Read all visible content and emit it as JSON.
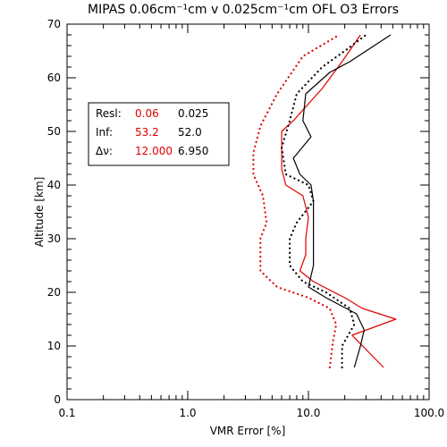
{
  "chart_data": {
    "type": "line",
    "title": "MIPAS 0.06cm⁻¹cm v 0.025cm⁻¹cm OFL O3 Errors",
    "xlabel": "VMR Error [%]",
    "ylabel": "Altitude [km]",
    "xscale": "log",
    "xlim": [
      0.1,
      100.0
    ],
    "ylim": [
      0,
      70
    ],
    "xticks": [
      {
        "value": 0.1,
        "label": "0.1"
      },
      {
        "value": 1.0,
        "label": "1.0"
      },
      {
        "value": 10.0,
        "label": "10.0"
      },
      {
        "value": 100.0,
        "label": "100.0"
      }
    ],
    "yticks": [
      0,
      10,
      20,
      30,
      40,
      50,
      60,
      70
    ],
    "legend": {
      "placement": "upper-left inside",
      "rows": [
        {
          "label": "Resl:",
          "red": "0.06",
          "black": "0.025"
        },
        {
          "label": "Inf:",
          "red": "53.2",
          "black": "52.0"
        },
        {
          "label": "Δν:",
          "red": "12.000",
          "black": "6.950"
        }
      ]
    },
    "colors": {
      "red": "#e00000",
      "black": "#000000"
    },
    "series": [
      {
        "color": "red",
        "style": "solid",
        "points": [
          [
            42,
            6
          ],
          [
            23,
            12
          ],
          [
            53,
            15
          ],
          [
            28,
            17
          ],
          [
            20,
            19
          ],
          [
            11,
            22
          ],
          [
            8.5,
            24
          ],
          [
            9.5,
            27
          ],
          [
            9.5,
            30
          ],
          [
            10,
            34
          ],
          [
            9,
            38
          ],
          [
            6.5,
            40
          ],
          [
            6,
            43
          ],
          [
            6,
            50
          ],
          [
            7.5,
            52
          ],
          [
            13,
            58
          ],
          [
            19,
            63
          ],
          [
            27,
            68
          ]
        ]
      },
      {
        "color": "black",
        "style": "solid",
        "points": [
          [
            24,
            6
          ],
          [
            27,
            10
          ],
          [
            29,
            13
          ],
          [
            25,
            16
          ],
          [
            14,
            19
          ],
          [
            10,
            21
          ],
          [
            11,
            25
          ],
          [
            11,
            30
          ],
          [
            11,
            37
          ],
          [
            10.5,
            40
          ],
          [
            8.5,
            42
          ],
          [
            7.5,
            45
          ],
          [
            10.5,
            49
          ],
          [
            9,
            52
          ],
          [
            9.5,
            57
          ],
          [
            15,
            61
          ],
          [
            22,
            63
          ],
          [
            48,
            68
          ]
        ]
      },
      {
        "color": "red",
        "style": "dotted",
        "points": [
          [
            15,
            6
          ],
          [
            16,
            11
          ],
          [
            17,
            14
          ],
          [
            15,
            17
          ],
          [
            10,
            19
          ],
          [
            5.5,
            21
          ],
          [
            4,
            24
          ],
          [
            4,
            30
          ],
          [
            4.5,
            33
          ],
          [
            4.2,
            38
          ],
          [
            3.5,
            42
          ],
          [
            3.5,
            46
          ],
          [
            4,
            51
          ],
          [
            5.5,
            57
          ],
          [
            9,
            64
          ],
          [
            18,
            68
          ]
        ]
      },
      {
        "color": "black",
        "style": "dotted",
        "points": [
          [
            19,
            6
          ],
          [
            19,
            10
          ],
          [
            24,
            14
          ],
          [
            22,
            17
          ],
          [
            14,
            20
          ],
          [
            9,
            22
          ],
          [
            7,
            25
          ],
          [
            7,
            30
          ],
          [
            8,
            33
          ],
          [
            11,
            37
          ],
          [
            10,
            40
          ],
          [
            6.5,
            42
          ],
          [
            6,
            47
          ],
          [
            7,
            52
          ],
          [
            8,
            57
          ],
          [
            13,
            62
          ],
          [
            20,
            65
          ],
          [
            30,
            68
          ]
        ]
      }
    ]
  }
}
